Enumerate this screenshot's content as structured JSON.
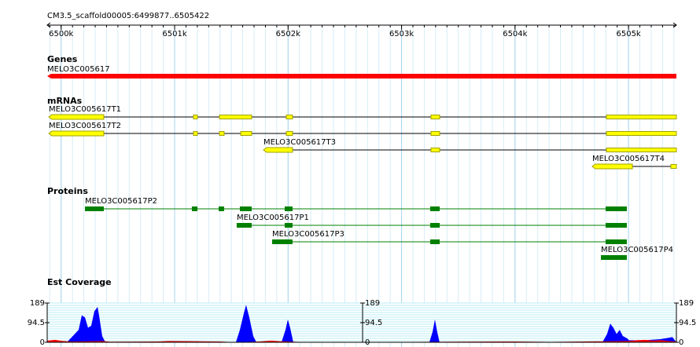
{
  "header": {
    "location": "CM3.5_scaffold00005:6499877..6505422"
  },
  "ruler": {
    "xlim": [
      6499877,
      6505422
    ],
    "ticks": [
      {
        "value": 6500000,
        "label": "6500k"
      },
      {
        "value": 6501000,
        "label": "6501k"
      },
      {
        "value": 6502000,
        "label": "6502k"
      },
      {
        "value": 6503000,
        "label": "6503k"
      },
      {
        "value": 6504000,
        "label": "6504k"
      },
      {
        "value": 6505000,
        "label": "6505k"
      }
    ]
  },
  "genes": {
    "title": "Genes",
    "color": "#ff0000",
    "features": [
      {
        "name": "MELO3C005617",
        "start": 6499877,
        "end": 6505422
      }
    ]
  },
  "mrnas": {
    "title": "mRNAs",
    "color": "#ffff00",
    "features": [
      {
        "name": "MELO3C005617T1",
        "exons": [
          [
            6499891,
            6500376
          ],
          [
            6501166,
            6501201
          ],
          [
            6501395,
            6501679
          ],
          [
            6501984,
            6502039
          ],
          [
            6503259,
            6503336
          ],
          [
            6504805,
            6505422
          ]
        ]
      },
      {
        "name": "MELO3C005617T2",
        "exons": [
          [
            6499891,
            6500376
          ],
          [
            6501166,
            6501201
          ],
          [
            6501395,
            6501436
          ],
          [
            6501582,
            6501679
          ],
          [
            6501984,
            6502039
          ],
          [
            6503259,
            6503336
          ],
          [
            6504805,
            6505422
          ]
        ]
      },
      {
        "name": "MELO3C005617T3",
        "exons": [
          [
            6501783,
            6502039
          ],
          [
            6503259,
            6503336
          ],
          [
            6504805,
            6505422
          ]
        ]
      },
      {
        "name": "MELO3C005617T4",
        "exons": [
          [
            6504680,
            6505034
          ],
          [
            6505373,
            6505422
          ]
        ]
      }
    ]
  },
  "proteins": {
    "title": "Proteins",
    "color": "#008000",
    "features": [
      {
        "name": "MELO3C005617P2",
        "exons": [
          [
            6500210,
            6500376
          ],
          [
            6501152,
            6501201
          ],
          [
            6501388,
            6501436
          ],
          [
            6501575,
            6501679
          ],
          [
            6501970,
            6502039
          ],
          [
            6503252,
            6503336
          ],
          [
            6504798,
            6504985
          ]
        ]
      },
      {
        "name": "MELO3C005617P1",
        "exons": [
          [
            6501547,
            6501679
          ],
          [
            6501970,
            6502039
          ],
          [
            6503252,
            6503336
          ],
          [
            6504798,
            6504985
          ]
        ]
      },
      {
        "name": "MELO3C005617P3",
        "exons": [
          [
            6501859,
            6502039
          ],
          [
            6503252,
            6503336
          ],
          [
            6504798,
            6504985
          ]
        ]
      },
      {
        "name": "MELO3C005617P4",
        "exons": [
          [
            6504757,
            6504985
          ]
        ]
      }
    ]
  },
  "coverage": {
    "title": "Est Coverage",
    "ylim": [
      0,
      189
    ],
    "yticks": [
      0,
      94.5,
      189
    ],
    "series": [
      {
        "color": "#0000ff",
        "x": [
          6499877,
          6499912,
          6499946,
          6499981,
          6500050,
          6500085,
          6500120,
          6500154,
          6500182,
          6500210,
          6500237,
          6500265,
          6500293,
          6500321,
          6500334,
          6500362,
          6500390,
          6501540,
          6501575,
          6501610,
          6501630,
          6501658,
          6501693,
          6501721,
          6501942,
          6501977,
          6501998,
          6502018,
          6502046,
          6503245,
          6503273,
          6503294,
          6503314,
          6503335,
          6504770,
          6504811,
          6504839,
          6504867,
          6504895,
          6504922,
          6504950,
          6504985,
          6505005,
          6505144,
          6505283,
          6505387,
          6505422
        ],
        "values": [
          5,
          10,
          5,
          0,
          0,
          20,
          40,
          60,
          130,
          120,
          70,
          80,
          150,
          170,
          130,
          30,
          0,
          0,
          60,
          140,
          180,
          120,
          30,
          0,
          0,
          60,
          110,
          70,
          0,
          0,
          50,
          110,
          50,
          0,
          0,
          40,
          90,
          70,
          40,
          60,
          30,
          20,
          10,
          10,
          15,
          25,
          0
        ]
      },
      {
        "color": "#ff0000",
        "x": [
          6499877,
          6499946,
          6500016,
          6500085,
          6500362,
          6500431,
          6500847,
          6500951,
          6501159,
          6501402,
          6501540,
          6501748,
          6501852,
          6501921,
          6502095,
          6503065,
          6503999,
          6504313,
          6505005,
          6505075,
          6505144,
          6505213,
          6505283,
          6505352,
          6505422
        ],
        "values": [
          8,
          12,
          6,
          4,
          6,
          3,
          4,
          6,
          5,
          4,
          0,
          4,
          8,
          5,
          2,
          2,
          4,
          2,
          6,
          10,
          12,
          8,
          10,
          6,
          4
        ]
      }
    ]
  }
}
